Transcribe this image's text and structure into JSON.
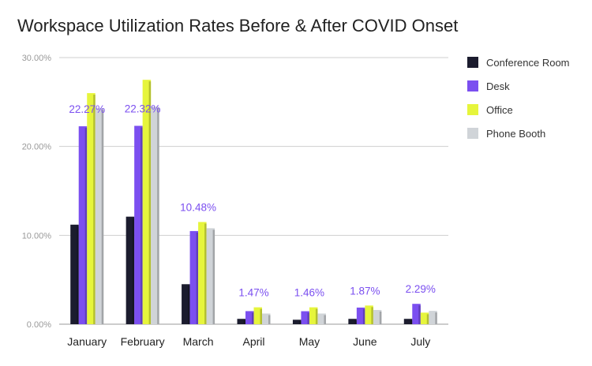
{
  "chart_data": {
    "type": "bar",
    "title": "Workspace Utilization Rates Before & After COVID Onset",
    "xlabel": "",
    "ylabel": "",
    "ylim": [
      0,
      30
    ],
    "yticks": [
      "0.00%",
      "10.00%",
      "20.00%",
      "30.00%"
    ],
    "grid": true,
    "legend_position": "right",
    "categories": [
      "January",
      "February",
      "March",
      "April",
      "May",
      "June",
      "July"
    ],
    "series": [
      {
        "name": "Conference Room",
        "color": "#1b1c2e",
        "values": [
          11.2,
          12.1,
          4.5,
          0.6,
          0.5,
          0.6,
          0.6
        ]
      },
      {
        "name": "Desk",
        "color": "#7b4ff0",
        "values": [
          22.27,
          22.32,
          10.48,
          1.47,
          1.46,
          1.87,
          2.29
        ]
      },
      {
        "name": "Office",
        "color": "#e6f53c",
        "values": [
          26.0,
          27.5,
          11.5,
          1.9,
          1.9,
          2.1,
          1.3
        ]
      },
      {
        "name": "Phone Booth",
        "color": "#d0d4d8",
        "values": [
          24.3,
          24.5,
          10.8,
          1.2,
          1.2,
          1.6,
          1.5
        ]
      }
    ],
    "data_labels": [
      "22.27%",
      "22.32%",
      "10.48%",
      "1.47%",
      "1.46%",
      "1.87%",
      "2.29%"
    ],
    "data_label_color": "#7b4ff0"
  }
}
